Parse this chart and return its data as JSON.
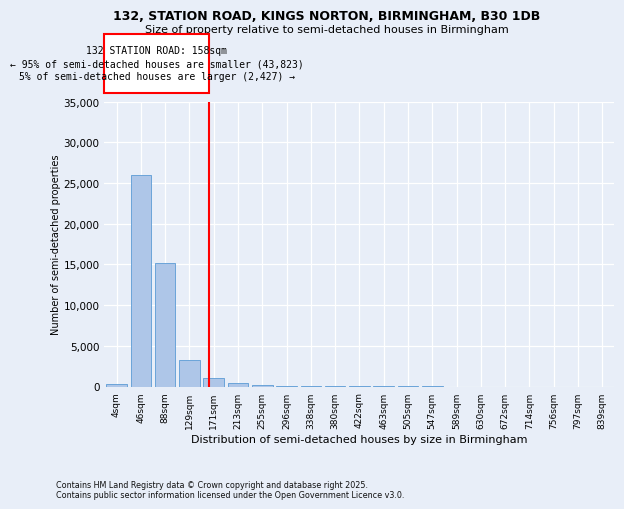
{
  "title1": "132, STATION ROAD, KINGS NORTON, BIRMINGHAM, B30 1DB",
  "title2": "Size of property relative to semi-detached houses in Birmingham",
  "xlabel": "Distribution of semi-detached houses by size in Birmingham",
  "ylabel": "Number of semi-detached properties",
  "categories": [
    "4sqm",
    "46sqm",
    "88sqm",
    "129sqm",
    "171sqm",
    "213sqm",
    "255sqm",
    "296sqm",
    "338sqm",
    "380sqm",
    "422sqm",
    "463sqm",
    "505sqm",
    "547sqm",
    "589sqm",
    "630sqm",
    "672sqm",
    "714sqm",
    "756sqm",
    "797sqm",
    "839sqm"
  ],
  "values": [
    300,
    26000,
    15200,
    3200,
    1100,
    400,
    150,
    50,
    10,
    5,
    3,
    2,
    1,
    1,
    0,
    0,
    0,
    0,
    0,
    0,
    0
  ],
  "bar_color": "#aec6e8",
  "bar_edge_color": "#5b9bd5",
  "red_line_x": 3.82,
  "ann_title": "132 STATION ROAD: 158sqm",
  "ann_line1": "← 95% of semi-detached houses are smaller (43,823)",
  "ann_line2": "5% of semi-detached houses are larger (2,427) →",
  "ylim_max": 35000,
  "yticks": [
    0,
    5000,
    10000,
    15000,
    20000,
    25000,
    30000,
    35000
  ],
  "background_color": "#e8eef8",
  "grid_color": "#ffffff",
  "footer1": "Contains HM Land Registry data © Crown copyright and database right 2025.",
  "footer2": "Contains public sector information licensed under the Open Government Licence v3.0."
}
